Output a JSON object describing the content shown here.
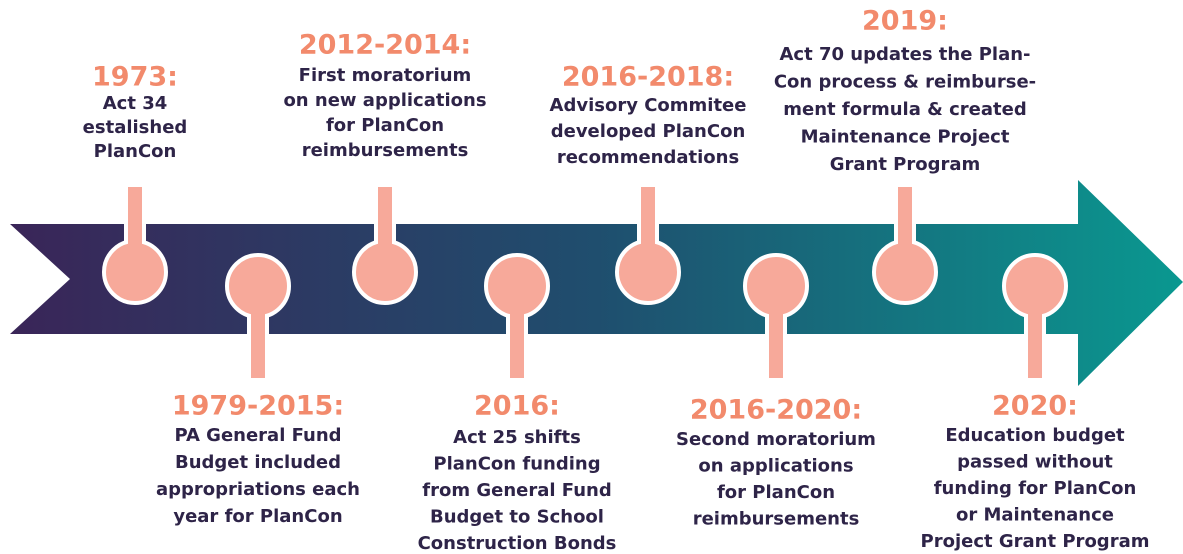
{
  "events": [
    {
      "year": "1973:",
      "lines": [
        "Act 34",
        "estalished",
        "PlanCon"
      ]
    },
    {
      "year": "1979-2015:",
      "lines": [
        "PA General Fund",
        "Budget included",
        "appropriations each",
        "year for PlanCon"
      ]
    },
    {
      "year": "2012-2014:",
      "lines": [
        "First moratorium",
        "on new applications",
        "for PlanCon",
        "reimbursements"
      ]
    },
    {
      "year": "2016:",
      "lines": [
        "Act 25 shifts",
        "PlanCon funding",
        "from General Fund",
        "Budget to School",
        "Construction Bonds"
      ]
    },
    {
      "year": "2016-2018:",
      "lines": [
        "Advisory Commitee",
        "developed PlanCon",
        "recommendations"
      ]
    },
    {
      "year": "2016-2020:",
      "lines": [
        "Second moratorium",
        "on applications",
        "for PlanCon",
        "reimbursements"
      ]
    },
    {
      "year": "2019:",
      "lines": [
        "Act 70 updates the Plan-",
        "Con process & reimburse-",
        "ment formula & created",
        "Maintenance Project",
        "Grant Program"
      ]
    },
    {
      "year": "2020:",
      "lines": [
        "Education budget",
        "passed without",
        "funding for PlanCon",
        "or Maintenance",
        "Project Grant Program"
      ]
    }
  ]
}
